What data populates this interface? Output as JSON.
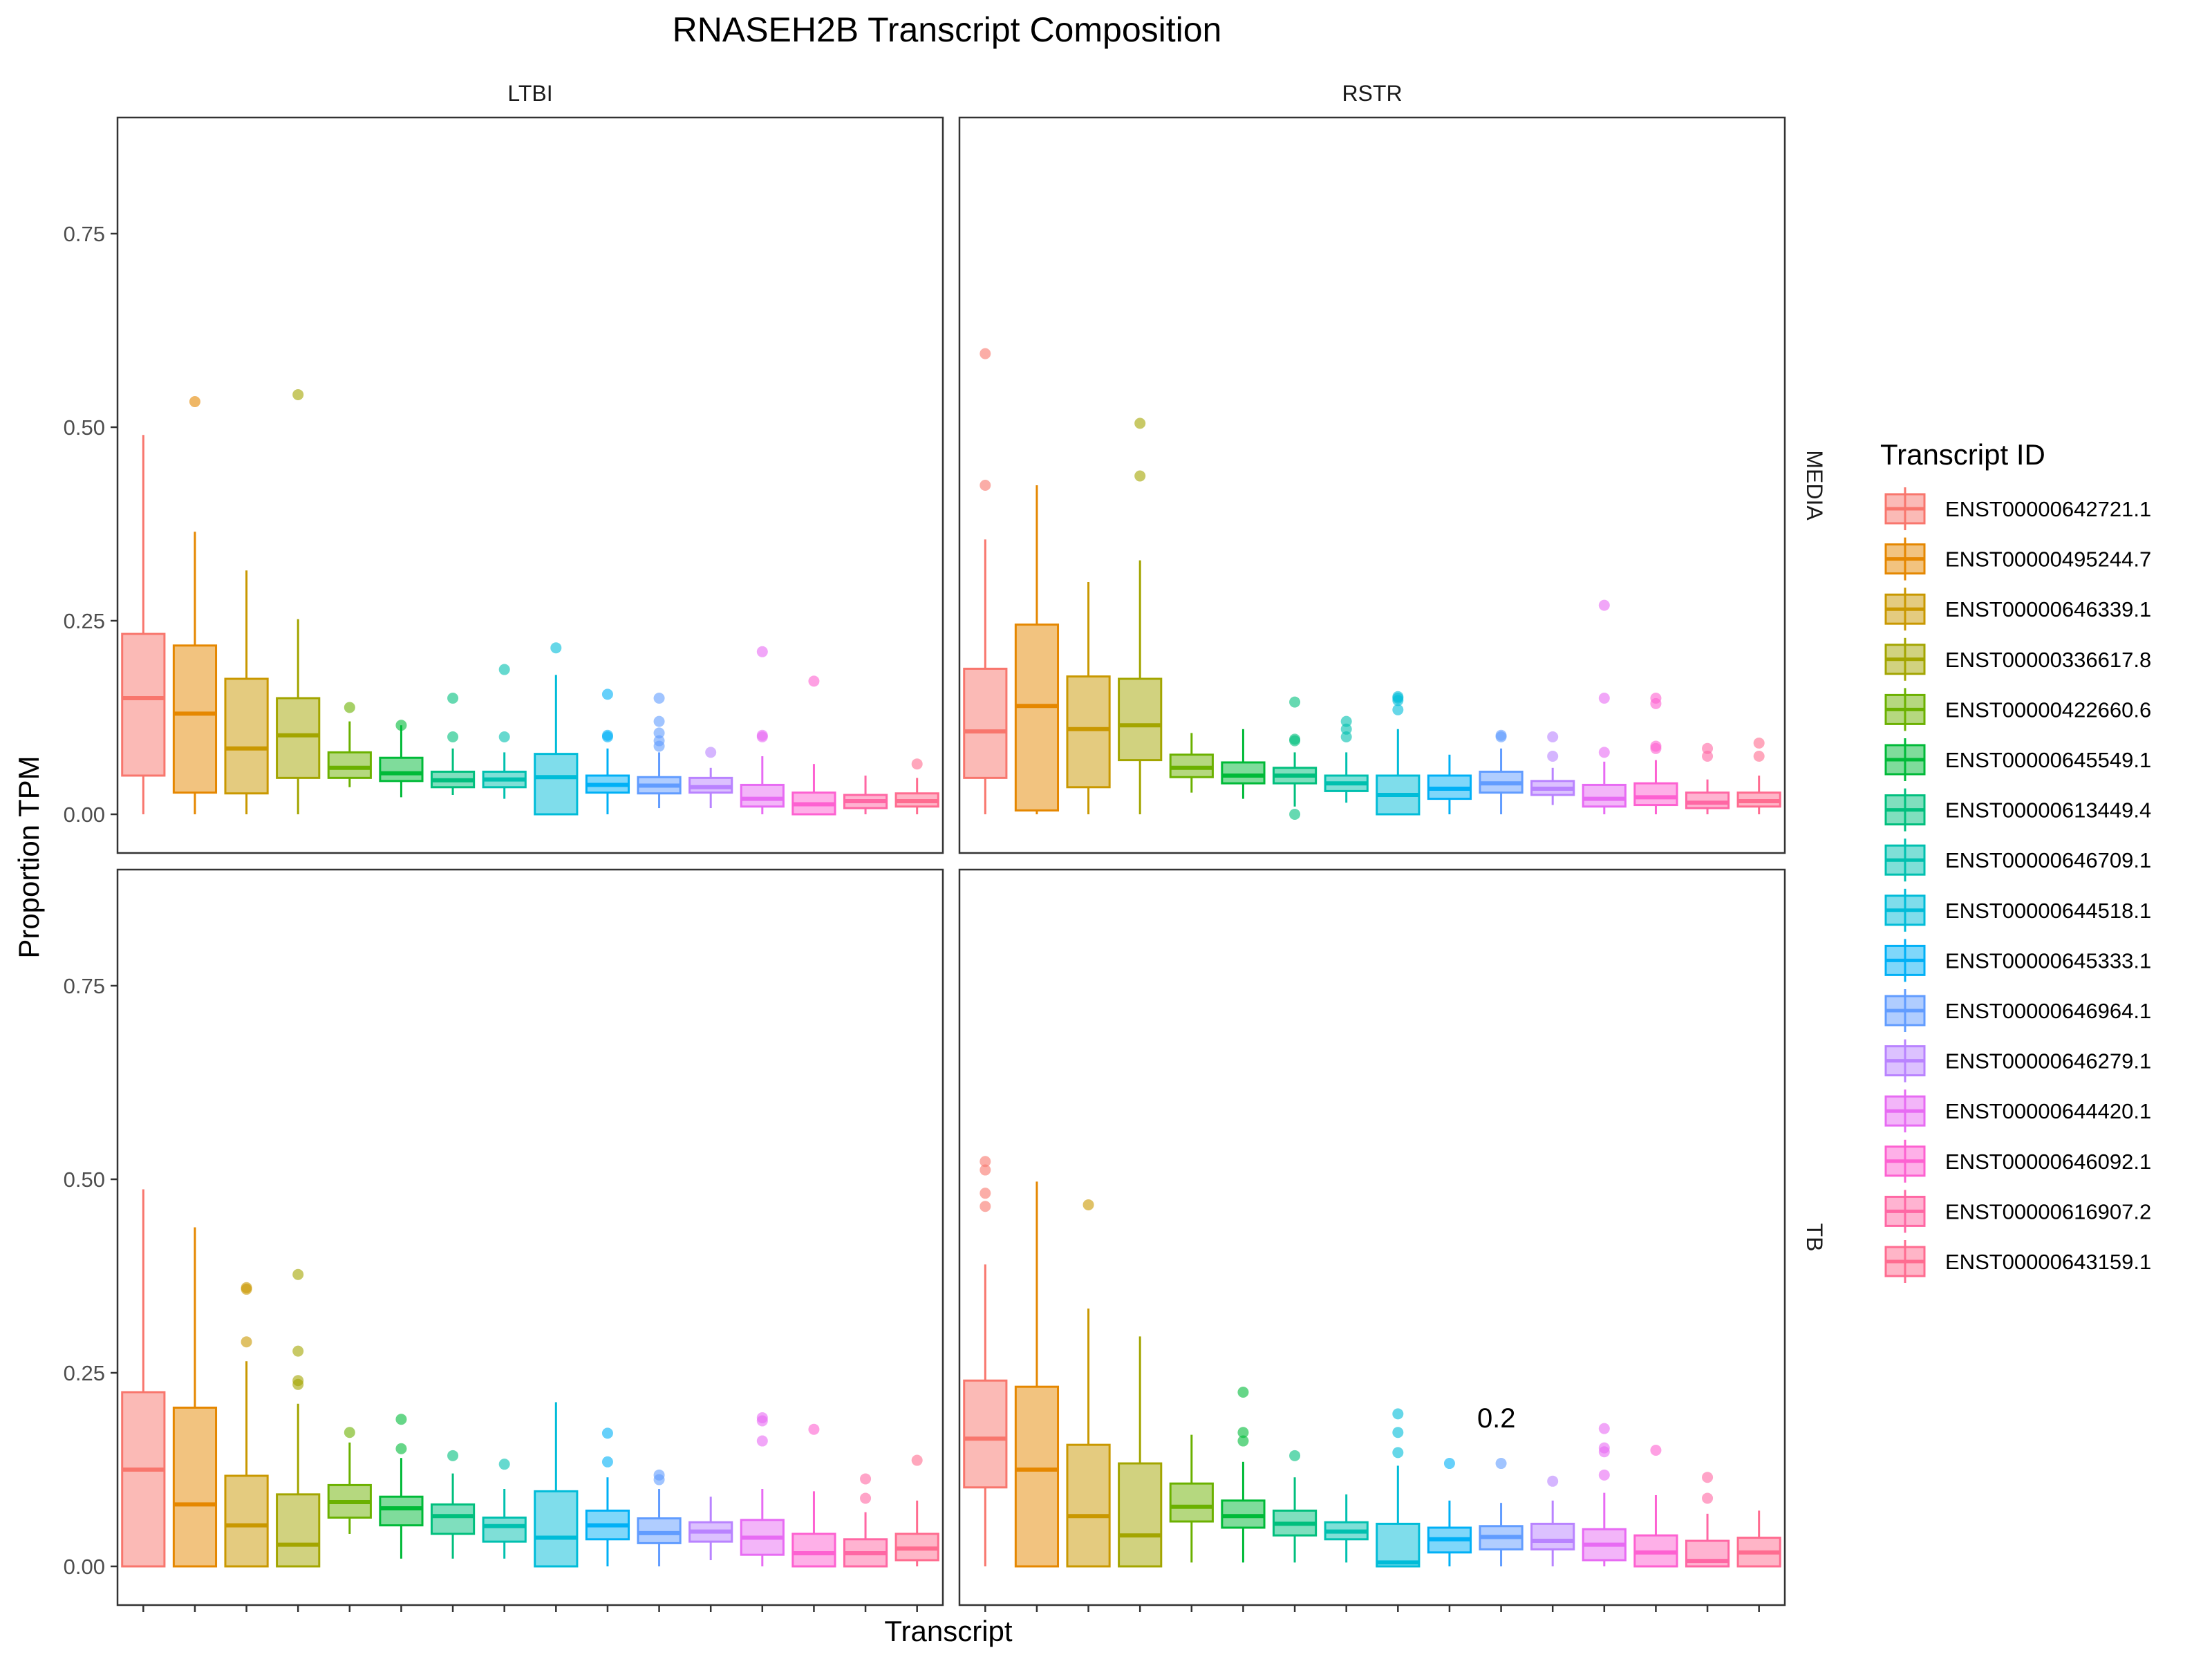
{
  "chart_data": {
    "type": "box",
    "title": "RNASEH2B Transcript Composition",
    "xlabel": "Transcript",
    "ylabel": "Proportion TPM",
    "ylim": [
      -0.05,
      0.9
    ],
    "yticks": [
      0.0,
      0.25,
      0.5,
      0.75
    ],
    "ytick_labels": [
      "0.00",
      "0.25",
      "0.50",
      "0.75"
    ],
    "grid": false,
    "legend": {
      "title": "Transcript ID",
      "position": "right"
    },
    "facet_cols": [
      "LTBI",
      "RSTR"
    ],
    "facet_rows": [
      "MEDIA",
      "TB"
    ],
    "annotation": {
      "text": "0.2",
      "panel": "RSTR-TB",
      "x_index": 9,
      "y": 0.19
    },
    "transcripts": [
      {
        "id": "ENST00000642721.1",
        "color": "#F8766D"
      },
      {
        "id": "ENST00000495244.7",
        "color": "#E58700"
      },
      {
        "id": "ENST00000646339.1",
        "color": "#C99800"
      },
      {
        "id": "ENST00000336617.8",
        "color": "#A3A500"
      },
      {
        "id": "ENST00000422660.6",
        "color": "#6BB100"
      },
      {
        "id": "ENST00000645549.1",
        "color": "#00BA38"
      },
      {
        "id": "ENST00000613449.4",
        "color": "#00BF7D"
      },
      {
        "id": "ENST00000646709.1",
        "color": "#00C0AF"
      },
      {
        "id": "ENST00000644518.1",
        "color": "#00BCD8"
      },
      {
        "id": "ENST00000645333.1",
        "color": "#00B0F6"
      },
      {
        "id": "ENST00000646964.1",
        "color": "#619CFF"
      },
      {
        "id": "ENST00000646279.1",
        "color": "#B983FF"
      },
      {
        "id": "ENST00000644420.1",
        "color": "#E76BF3"
      },
      {
        "id": "ENST00000646092.1",
        "color": "#FD61D1"
      },
      {
        "id": "ENST00000616907.2",
        "color": "#FF67A4"
      },
      {
        "id": "ENST00000643159.1",
        "color": "#FF6C90"
      }
    ],
    "panels": [
      {
        "name": "LTBI-MEDIA",
        "col": "LTBI",
        "row": "MEDIA",
        "boxes": [
          {
            "q1": 0.05,
            "med": 0.15,
            "q3": 0.233,
            "lo": 0.0,
            "hi": 0.49,
            "out": []
          },
          {
            "q1": 0.028,
            "med": 0.13,
            "q3": 0.218,
            "lo": 0.0,
            "hi": 0.365,
            "out": [
              0.533
            ]
          },
          {
            "q1": 0.027,
            "med": 0.085,
            "q3": 0.175,
            "lo": 0.0,
            "hi": 0.315,
            "out": []
          },
          {
            "q1": 0.047,
            "med": 0.102,
            "q3": 0.15,
            "lo": 0.0,
            "hi": 0.252,
            "out": [
              0.542
            ]
          },
          {
            "q1": 0.047,
            "med": 0.06,
            "q3": 0.08,
            "lo": 0.035,
            "hi": 0.12,
            "out": [
              0.138
            ]
          },
          {
            "q1": 0.043,
            "med": 0.053,
            "q3": 0.073,
            "lo": 0.022,
            "hi": 0.115,
            "out": [
              0.115
            ]
          },
          {
            "q1": 0.035,
            "med": 0.044,
            "q3": 0.055,
            "lo": 0.025,
            "hi": 0.085,
            "out": [
              0.1,
              0.15
            ]
          },
          {
            "q1": 0.035,
            "med": 0.045,
            "q3": 0.055,
            "lo": 0.02,
            "hi": 0.08,
            "out": [
              0.1,
              0.187
            ]
          },
          {
            "q1": 0.0,
            "med": 0.048,
            "q3": 0.078,
            "lo": 0.0,
            "hi": 0.18,
            "out": [
              0.215
            ]
          },
          {
            "q1": 0.028,
            "med": 0.038,
            "q3": 0.05,
            "lo": 0.0,
            "hi": 0.085,
            "out": [
              0.1,
              0.102,
              0.155
            ]
          },
          {
            "q1": 0.027,
            "med": 0.037,
            "q3": 0.048,
            "lo": 0.008,
            "hi": 0.08,
            "out": [
              0.088,
              0.095,
              0.105,
              0.12,
              0.15
            ]
          },
          {
            "q1": 0.028,
            "med": 0.035,
            "q3": 0.047,
            "lo": 0.008,
            "hi": 0.06,
            "out": [
              0.08
            ]
          },
          {
            "q1": 0.01,
            "med": 0.02,
            "q3": 0.038,
            "lo": 0.0,
            "hi": 0.075,
            "out": [
              0.1,
              0.102,
              0.21
            ]
          },
          {
            "q1": 0.0,
            "med": 0.013,
            "q3": 0.028,
            "lo": 0.0,
            "hi": 0.065,
            "out": [
              0.172
            ]
          },
          {
            "q1": 0.008,
            "med": 0.017,
            "q3": 0.025,
            "lo": 0.0,
            "hi": 0.05,
            "out": []
          },
          {
            "q1": 0.01,
            "med": 0.017,
            "q3": 0.027,
            "lo": 0.0,
            "hi": 0.047,
            "out": [
              0.065
            ]
          }
        ]
      },
      {
        "name": "RSTR-MEDIA",
        "col": "RSTR",
        "row": "MEDIA",
        "boxes": [
          {
            "q1": 0.047,
            "med": 0.107,
            "q3": 0.188,
            "lo": 0.0,
            "hi": 0.355,
            "out": [
              0.425,
              0.595
            ]
          },
          {
            "q1": 0.005,
            "med": 0.14,
            "q3": 0.245,
            "lo": 0.0,
            "hi": 0.425,
            "out": []
          },
          {
            "q1": 0.035,
            "med": 0.11,
            "q3": 0.178,
            "lo": 0.0,
            "hi": 0.3,
            "out": []
          },
          {
            "q1": 0.07,
            "med": 0.115,
            "q3": 0.175,
            "lo": 0.0,
            "hi": 0.328,
            "out": [
              0.437,
              0.505
            ]
          },
          {
            "q1": 0.048,
            "med": 0.06,
            "q3": 0.077,
            "lo": 0.028,
            "hi": 0.105,
            "out": []
          },
          {
            "q1": 0.04,
            "med": 0.05,
            "q3": 0.067,
            "lo": 0.02,
            "hi": 0.11,
            "out": []
          },
          {
            "q1": 0.04,
            "med": 0.05,
            "q3": 0.06,
            "lo": 0.01,
            "hi": 0.08,
            "out": [
              0.0,
              0.095,
              0.097,
              0.145
            ]
          },
          {
            "q1": 0.03,
            "med": 0.04,
            "q3": 0.05,
            "lo": 0.015,
            "hi": 0.08,
            "out": [
              0.1,
              0.11,
              0.12
            ]
          },
          {
            "q1": 0.0,
            "med": 0.025,
            "q3": 0.05,
            "lo": 0.0,
            "hi": 0.11,
            "out": [
              0.135,
              0.147,
              0.15,
              0.152
            ]
          },
          {
            "q1": 0.02,
            "med": 0.033,
            "q3": 0.05,
            "lo": 0.0,
            "hi": 0.077,
            "out": []
          },
          {
            "q1": 0.028,
            "med": 0.04,
            "q3": 0.055,
            "lo": 0.0,
            "hi": 0.085,
            "out": [
              0.1,
              0.102
            ]
          },
          {
            "q1": 0.025,
            "med": 0.033,
            "q3": 0.043,
            "lo": 0.012,
            "hi": 0.06,
            "out": [
              0.075,
              0.1
            ]
          },
          {
            "q1": 0.01,
            "med": 0.02,
            "q3": 0.038,
            "lo": 0.0,
            "hi": 0.068,
            "out": [
              0.08,
              0.15,
              0.27
            ]
          },
          {
            "q1": 0.012,
            "med": 0.022,
            "q3": 0.04,
            "lo": 0.0,
            "hi": 0.07,
            "out": [
              0.085,
              0.088,
              0.143,
              0.15
            ]
          },
          {
            "q1": 0.008,
            "med": 0.015,
            "q3": 0.028,
            "lo": 0.0,
            "hi": 0.045,
            "out": [
              0.075,
              0.085
            ]
          },
          {
            "q1": 0.01,
            "med": 0.017,
            "q3": 0.028,
            "lo": 0.0,
            "hi": 0.05,
            "out": [
              0.075,
              0.092
            ]
          }
        ]
      },
      {
        "name": "LTBI-TB",
        "col": "LTBI",
        "row": "TB",
        "boxes": [
          {
            "q1": 0.0,
            "med": 0.125,
            "q3": 0.225,
            "lo": 0.0,
            "hi": 0.487,
            "out": []
          },
          {
            "q1": 0.0,
            "med": 0.08,
            "q3": 0.205,
            "lo": 0.0,
            "hi": 0.438,
            "out": []
          },
          {
            "q1": 0.0,
            "med": 0.053,
            "q3": 0.117,
            "lo": 0.0,
            "hi": 0.265,
            "out": [
              0.29,
              0.358,
              0.36
            ]
          },
          {
            "q1": 0.0,
            "med": 0.028,
            "q3": 0.093,
            "lo": 0.0,
            "hi": 0.21,
            "out": [
              0.235,
              0.24,
              0.278,
              0.377
            ]
          },
          {
            "q1": 0.063,
            "med": 0.083,
            "q3": 0.105,
            "lo": 0.042,
            "hi": 0.16,
            "out": [
              0.173
            ]
          },
          {
            "q1": 0.053,
            "med": 0.075,
            "q3": 0.09,
            "lo": 0.01,
            "hi": 0.14,
            "out": [
              0.152,
              0.19
            ]
          },
          {
            "q1": 0.042,
            "med": 0.065,
            "q3": 0.08,
            "lo": 0.01,
            "hi": 0.12,
            "out": [
              0.143
            ]
          },
          {
            "q1": 0.032,
            "med": 0.052,
            "q3": 0.063,
            "lo": 0.01,
            "hi": 0.1,
            "out": [
              0.132
            ]
          },
          {
            "q1": 0.0,
            "med": 0.037,
            "q3": 0.097,
            "lo": 0.0,
            "hi": 0.212,
            "out": []
          },
          {
            "q1": 0.035,
            "med": 0.053,
            "q3": 0.072,
            "lo": 0.0,
            "hi": 0.115,
            "out": [
              0.135,
              0.172
            ]
          },
          {
            "q1": 0.03,
            "med": 0.043,
            "q3": 0.062,
            "lo": 0.0,
            "hi": 0.1,
            "out": [
              0.112,
              0.118
            ]
          },
          {
            "q1": 0.032,
            "med": 0.045,
            "q3": 0.057,
            "lo": 0.008,
            "hi": 0.09,
            "out": []
          },
          {
            "q1": 0.015,
            "med": 0.037,
            "q3": 0.06,
            "lo": 0.0,
            "hi": 0.1,
            "out": [
              0.162,
              0.188,
              0.192
            ]
          },
          {
            "q1": 0.0,
            "med": 0.017,
            "q3": 0.042,
            "lo": 0.0,
            "hi": 0.097,
            "out": [
              0.177
            ]
          },
          {
            "q1": 0.0,
            "med": 0.017,
            "q3": 0.035,
            "lo": 0.0,
            "hi": 0.07,
            "out": [
              0.088,
              0.113
            ]
          },
          {
            "q1": 0.008,
            "med": 0.023,
            "q3": 0.042,
            "lo": 0.0,
            "hi": 0.085,
            "out": [
              0.137
            ]
          }
        ]
      },
      {
        "name": "RSTR-TB",
        "col": "RSTR",
        "row": "TB",
        "boxes": [
          {
            "q1": 0.102,
            "med": 0.165,
            "q3": 0.24,
            "lo": 0.0,
            "hi": 0.39,
            "out": [
              0.465,
              0.482,
              0.512,
              0.523
            ]
          },
          {
            "q1": 0.0,
            "med": 0.125,
            "q3": 0.232,
            "lo": 0.0,
            "hi": 0.497,
            "out": []
          },
          {
            "q1": 0.0,
            "med": 0.065,
            "q3": 0.157,
            "lo": 0.0,
            "hi": 0.333,
            "out": [
              0.467
            ]
          },
          {
            "q1": 0.0,
            "med": 0.04,
            "q3": 0.133,
            "lo": 0.0,
            "hi": 0.297,
            "out": []
          },
          {
            "q1": 0.058,
            "med": 0.077,
            "q3": 0.107,
            "lo": 0.005,
            "hi": 0.17,
            "out": []
          },
          {
            "q1": 0.05,
            "med": 0.065,
            "q3": 0.085,
            "lo": 0.005,
            "hi": 0.135,
            "out": [
              0.162,
              0.173,
              0.225
            ]
          },
          {
            "q1": 0.04,
            "med": 0.055,
            "q3": 0.072,
            "lo": 0.005,
            "hi": 0.115,
            "out": [
              0.143
            ]
          },
          {
            "q1": 0.035,
            "med": 0.045,
            "q3": 0.057,
            "lo": 0.005,
            "hi": 0.093,
            "out": []
          },
          {
            "q1": 0.0,
            "med": 0.005,
            "q3": 0.055,
            "lo": 0.0,
            "hi": 0.13,
            "out": [
              0.147,
              0.173,
              0.197
            ]
          },
          {
            "q1": 0.018,
            "med": 0.035,
            "q3": 0.05,
            "lo": 0.0,
            "hi": 0.085,
            "out": [
              0.133
            ]
          },
          {
            "q1": 0.022,
            "med": 0.038,
            "q3": 0.052,
            "lo": 0.0,
            "hi": 0.082,
            "out": [
              0.133
            ]
          },
          {
            "q1": 0.022,
            "med": 0.033,
            "q3": 0.055,
            "lo": 0.0,
            "hi": 0.085,
            "out": [
              0.11
            ]
          },
          {
            "q1": 0.008,
            "med": 0.028,
            "q3": 0.048,
            "lo": 0.0,
            "hi": 0.095,
            "out": [
              0.118,
              0.148,
              0.153,
              0.178
            ]
          },
          {
            "q1": 0.0,
            "med": 0.018,
            "q3": 0.04,
            "lo": 0.0,
            "hi": 0.092,
            "out": [
              0.15
            ]
          },
          {
            "q1": 0.0,
            "med": 0.007,
            "q3": 0.033,
            "lo": 0.0,
            "hi": 0.068,
            "out": [
              0.088,
              0.115
            ]
          },
          {
            "q1": 0.0,
            "med": 0.018,
            "q3": 0.037,
            "lo": 0.0,
            "hi": 0.072,
            "out": []
          }
        ]
      }
    ]
  }
}
